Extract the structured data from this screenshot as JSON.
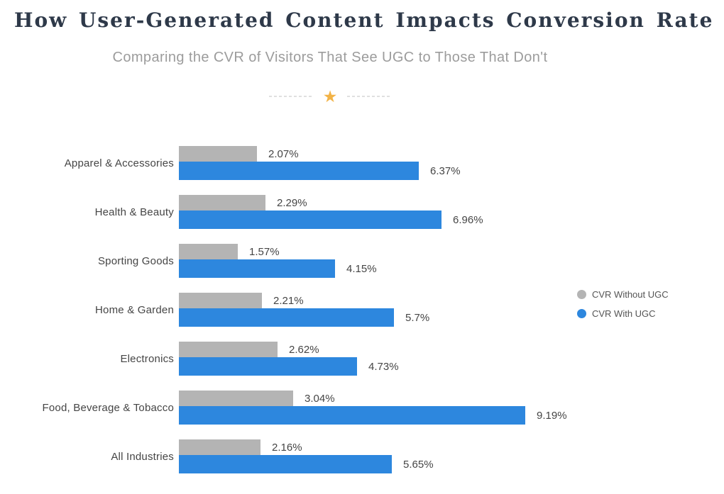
{
  "header": {
    "title": "How User-Generated Content Impacts Conversion Rate",
    "subtitle": "Comparing the CVR of Visitors That See UGC to Those That Don't"
  },
  "divider": {
    "star_glyph": "★",
    "star_color": "#f2b347"
  },
  "chart_data": {
    "type": "bar",
    "orientation": "horizontal",
    "title": "How User-Generated Content Impacts Conversion Rate",
    "subtitle": "Comparing the CVR of Visitors That See UGC to Those That Don't",
    "categories": [
      "Apparel & Accessories",
      "Health & Beauty",
      "Sporting Goods",
      "Home & Garden",
      "Electronics",
      "Food, Beverage & Tobacco",
      "All Industries"
    ],
    "series": [
      {
        "name": "CVR Without UGC",
        "color": "#b4b4b4",
        "values": [
          2.07,
          2.29,
          1.57,
          2.21,
          2.62,
          3.04,
          2.16
        ],
        "labels": [
          "2.07%",
          "2.29%",
          "1.57%",
          "2.21%",
          "2.62%",
          "3.04%",
          "2.16%"
        ]
      },
      {
        "name": "CVR With UGC",
        "color": "#2d87de",
        "values": [
          6.37,
          6.96,
          4.15,
          5.7,
          4.73,
          9.19,
          5.65
        ],
        "labels": [
          "6.37%",
          "6.96%",
          "4.15%",
          "5.7%",
          "4.73%",
          "9.19%",
          "5.65%"
        ]
      }
    ],
    "value_suffix": "%",
    "xlim": [
      0,
      9.19
    ],
    "grid": false,
    "legend_position": "right"
  }
}
